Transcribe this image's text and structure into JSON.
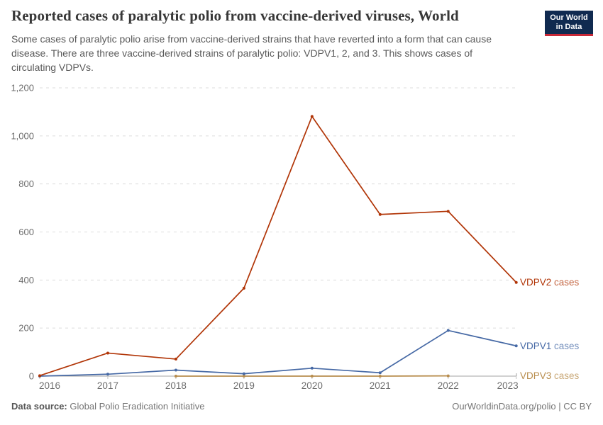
{
  "header": {
    "title": "Reported cases of paralytic polio from vaccine-derived viruses, World",
    "subtitle": "Some cases of paralytic polio arise from vaccine-derived strains that have reverted into a form that can cause disease. There are three vaccine-derived strains of paralytic polio: VDPV1, 2, and 3. This shows cases of circulating VDPVs.",
    "logo": {
      "line1": "Our World",
      "line2": "in Data",
      "bg_color": "#102a50",
      "accent_color": "#c82837"
    }
  },
  "footer": {
    "source_label": "Data source:",
    "source_value": "Global Polio Eradication Initiative",
    "credit": "OurWorldinData.org/polio | CC BY"
  },
  "chart_data": {
    "type": "line",
    "title": "Reported cases of paralytic polio from vaccine-derived viruses, World",
    "xlabel": "",
    "ylabel": "",
    "x": [
      2016,
      2017,
      2018,
      2019,
      2020,
      2021,
      2022,
      2023
    ],
    "ylim": [
      0,
      1200
    ],
    "yticks": [
      0,
      200,
      400,
      600,
      800,
      1000,
      1200
    ],
    "ytick_labels": [
      "0",
      "200",
      "400",
      "600",
      "800",
      "1,000",
      "1,200"
    ],
    "grid": "horizontal dashed",
    "legend_position": "line-end-labels-right",
    "series": [
      {
        "entity": "VDPV2",
        "suffix": "cases",
        "label": "VDPV2 cases",
        "color": "#b13507",
        "x": [
          2016,
          2017,
          2018,
          2019,
          2020,
          2021,
          2022,
          2023
        ],
        "values": [
          2,
          96,
          71,
          366,
          1081,
          673,
          686,
          390
        ]
      },
      {
        "entity": "VDPV1",
        "suffix": "cases",
        "label": "VDPV1 cases",
        "color": "#4669a5",
        "x": [
          2016,
          2017,
          2018,
          2019,
          2020,
          2021,
          2022,
          2023
        ],
        "values": [
          0,
          8,
          25,
          10,
          33,
          14,
          190,
          126
        ]
      },
      {
        "entity": "VDPV3",
        "suffix": "cases",
        "label": "VDPV3 cases",
        "color": "#b88d4d",
        "x": [
          2018,
          2019,
          2020,
          2021,
          2022
        ],
        "values": [
          0,
          0,
          0,
          0,
          1
        ]
      }
    ]
  }
}
